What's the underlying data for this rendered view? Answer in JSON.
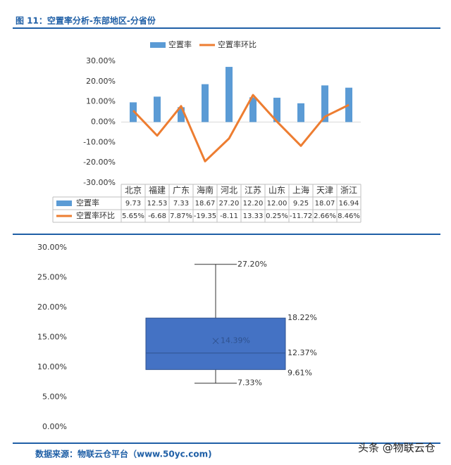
{
  "title": "图 11：空置率分析-东部地区-分省份",
  "chart_data": [
    {
      "type": "combo",
      "categories": [
        "北京",
        "福建",
        "广东",
        "海南",
        "河北",
        "江苏",
        "山东",
        "上海",
        "天津",
        "浙江"
      ],
      "series": [
        {
          "name": "空置率",
          "type": "bar",
          "color": "#5b9bd5",
          "values": [
            9.73,
            12.53,
            7.33,
            18.67,
            27.2,
            12.2,
            12,
            9.25,
            18.07,
            16.94
          ],
          "value_labels": [
            "9.73",
            "12.53",
            "7.33",
            "18.67",
            "27.20",
            "12.20",
            "12.00",
            "9.25",
            "18.07",
            "16.94"
          ]
        },
        {
          "name": "空置率环比",
          "type": "line",
          "color": "#ed7d31",
          "values": [
            5.65,
            -6.68,
            7.87,
            -19.35,
            -8.11,
            13.33,
            0.25,
            -11.72,
            2.66,
            8.46
          ],
          "value_labels": [
            "5.65%",
            "-6.68",
            "7.87%",
            "-19.35",
            "-8.11",
            "13.33",
            "0.25%",
            "-11.72",
            "2.66%",
            "8.46%"
          ]
        }
      ],
      "ylim": [
        -30,
        30
      ],
      "yticks": [
        {
          "value": -30,
          "label": "-30.00%"
        },
        {
          "value": -20,
          "label": "-20.00%"
        },
        {
          "value": -10,
          "label": "-10.00%"
        },
        {
          "value": 0,
          "label": "0.00%"
        },
        {
          "value": 10,
          "label": "10.00%"
        },
        {
          "value": 20,
          "label": "20.00%"
        },
        {
          "value": 30,
          "label": "30.00%"
        }
      ],
      "grid": false,
      "legend": "top"
    },
    {
      "type": "box",
      "color": "#4472c4",
      "ylim": [
        0,
        30
      ],
      "yticks": [
        {
          "value": 0,
          "label": "0.00%"
        },
        {
          "value": 5,
          "label": "5.00%"
        },
        {
          "value": 10,
          "label": "10.00%"
        },
        {
          "value": 15,
          "label": "15.00%"
        },
        {
          "value": 20,
          "label": "20.00%"
        },
        {
          "value": 25,
          "label": "25.00%"
        },
        {
          "value": 30,
          "label": "30.00%"
        }
      ],
      "box": {
        "min": 7.33,
        "q1": 9.61,
        "median": 12.37,
        "q3": 18.22,
        "max": 27.2,
        "mean": 14.39
      },
      "value_labels": {
        "min": "7.33%",
        "q1": "9.61%",
        "median": "12.37%",
        "q3": "18.22%",
        "max": "27.20%",
        "mean": "14.39%"
      },
      "grid": false
    }
  ],
  "source": "数据来源：物联云仓平台（www.50yc.com)",
  "watermark": "头条 @物联云仓"
}
